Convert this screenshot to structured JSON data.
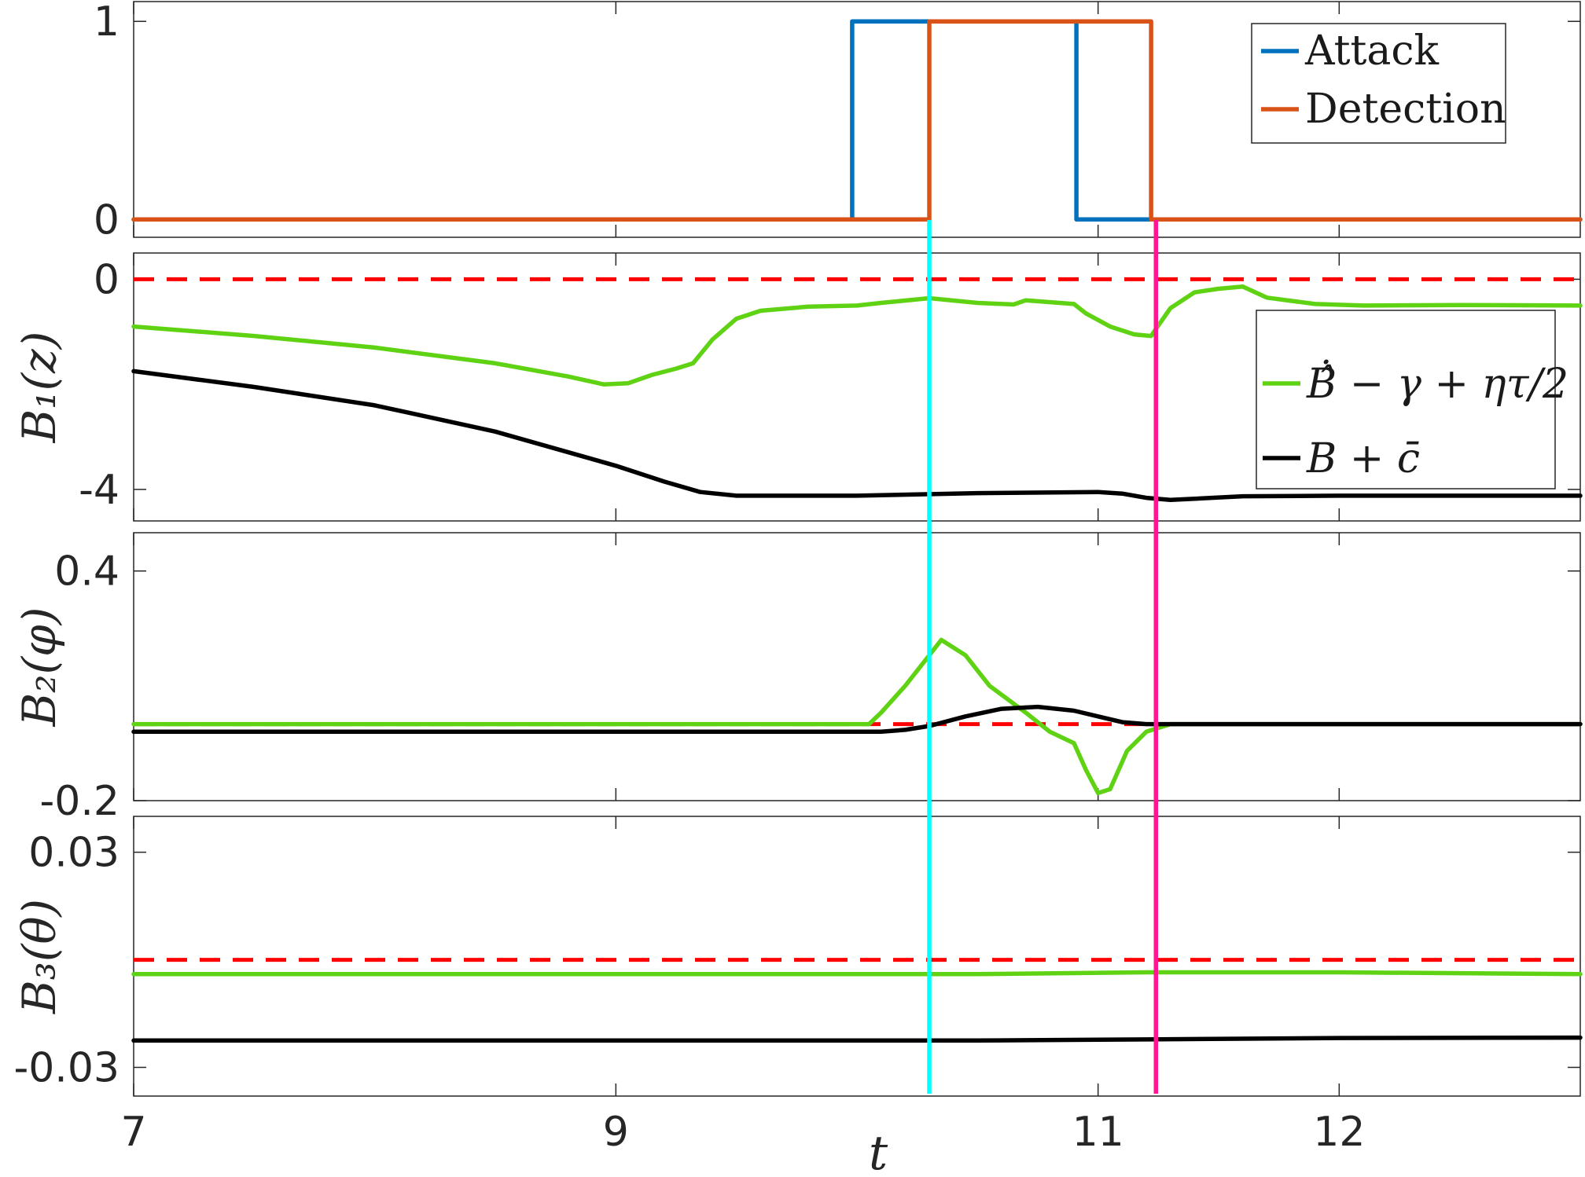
{
  "chart_data": {
    "type": "line",
    "xlabel": "t",
    "xlim": [
      7,
      13
    ],
    "xticks": [
      "7",
      "9",
      "11",
      "12"
    ],
    "xtick_values": [
      7,
      9,
      11,
      12
    ],
    "vlines": [
      {
        "x": 10.3,
        "color": "#00FFFF"
      },
      {
        "x": 11.24,
        "color": "#FF1493"
      }
    ],
    "colors": {
      "attack": "#0072BD",
      "detection": "#D95319",
      "green": "#5FD313",
      "black": "#000000",
      "zero": "#FF0000"
    },
    "panels": [
      {
        "id": "flags",
        "ylabel": "",
        "ylim": [
          -0.09,
          1.1
        ],
        "yticks": [
          {
            "v": 0,
            "label": "0"
          },
          {
            "v": 1,
            "label": "1"
          }
        ],
        "zero_line": false,
        "legend": {
          "position": "top-right",
          "entries": [
            "Attack",
            "Detection"
          ]
        },
        "series": [
          {
            "name": "Attack",
            "color_key": "attack",
            "step": true,
            "x": [
              7,
              9.98,
              9.98,
              10.91,
              10.91,
              13
            ],
            "y": [
              0,
              0,
              1,
              1,
              0,
              0
            ]
          },
          {
            "name": "Detection",
            "color_key": "detection",
            "step": true,
            "x": [
              7,
              10.3,
              10.3,
              11.22,
              11.22,
              13
            ],
            "y": [
              0,
              0,
              1,
              1,
              0,
              0
            ]
          }
        ]
      },
      {
        "id": "B1",
        "ylabel": "B₁(z)",
        "ylim": [
          -4.6,
          0.5
        ],
        "yticks": [
          {
            "v": 0,
            "label": "0"
          },
          {
            "v": -4,
            "label": "-4"
          }
        ],
        "zero_line": true,
        "legend": {
          "position": "right",
          "entries": [
            "Ḃ̂ − γ + ητ/2",
            "B + c̄"
          ]
        },
        "series": [
          {
            "name": "green",
            "color_key": "green",
            "x": [
              7,
              7.5,
              8,
              8.5,
              8.8,
              8.95,
              9.05,
              9.15,
              9.25,
              9.32,
              9.4,
              9.5,
              9.6,
              9.8,
              10.0,
              10.1,
              10.3,
              10.5,
              10.65,
              10.7,
              10.9,
              10.95,
              11.05,
              11.15,
              11.22,
              11.3,
              11.4,
              11.5,
              11.6,
              11.7,
              11.9,
              12.1,
              12.5,
              13
            ],
            "y": [
              -0.9,
              -1.08,
              -1.3,
              -1.6,
              -1.85,
              -2.0,
              -1.98,
              -1.82,
              -1.7,
              -1.6,
              -1.15,
              -0.75,
              -0.6,
              -0.52,
              -0.5,
              -0.45,
              -0.36,
              -0.45,
              -0.48,
              -0.4,
              -0.47,
              -0.65,
              -0.9,
              -1.05,
              -1.08,
              -0.55,
              -0.25,
              -0.18,
              -0.14,
              -0.35,
              -0.47,
              -0.5,
              -0.49,
              -0.5
            ]
          },
          {
            "name": "black",
            "color_key": "black",
            "x": [
              7,
              7.5,
              8,
              8.5,
              9.0,
              9.2,
              9.35,
              9.5,
              10.0,
              10.5,
              11.0,
              11.1,
              11.2,
              11.3,
              11.6,
              12.0,
              13
            ],
            "y": [
              -1.75,
              -2.05,
              -2.4,
              -2.9,
              -3.55,
              -3.85,
              -4.05,
              -4.12,
              -4.12,
              -4.07,
              -4.05,
              -4.08,
              -4.16,
              -4.2,
              -4.13,
              -4.12,
              -4.12
            ]
          }
        ]
      },
      {
        "id": "B2",
        "ylabel": "B₂(φ)",
        "ylim": [
          -0.2,
          0.5
        ],
        "yticks": [
          {
            "v": 0.4,
            "label": "0.4"
          },
          {
            "v": -0.2,
            "label": "-0.2"
          }
        ],
        "zero_line": true,
        "series": [
          {
            "name": "green",
            "color_key": "green",
            "x": [
              7,
              9.5,
              10.05,
              10.1,
              10.2,
              10.3,
              10.35,
              10.45,
              10.55,
              10.7,
              10.8,
              10.9,
              10.95,
              11.0,
              11.05,
              11.12,
              11.2,
              11.3,
              11.6,
              13
            ],
            "y": [
              0,
              0,
              0,
              0.03,
              0.1,
              0.18,
              0.22,
              0.18,
              0.1,
              0.03,
              -0.02,
              -0.05,
              -0.12,
              -0.18,
              -0.17,
              -0.07,
              -0.02,
              0,
              0,
              0
            ]
          },
          {
            "name": "black",
            "color_key": "black",
            "x": [
              7,
              9.5,
              10.1,
              10.2,
              10.3,
              10.45,
              10.6,
              10.75,
              10.9,
              11.0,
              11.1,
              11.2,
              11.5,
              13
            ],
            "y": [
              -0.02,
              -0.02,
              -0.02,
              -0.015,
              -0.005,
              0.02,
              0.04,
              0.045,
              0.035,
              0.02,
              0.005,
              0,
              0,
              0
            ]
          }
        ]
      },
      {
        "id": "B3",
        "ylabel": "B₃(θ)",
        "ylim": [
          -0.038,
          0.04
        ],
        "yticks": [
          {
            "v": 0.03,
            "label": "0.03"
          },
          {
            "v": -0.03,
            "label": "-0.03"
          }
        ],
        "zero_line": true,
        "series": [
          {
            "name": "green",
            "color_key": "green",
            "x": [
              7,
              10.5,
              11.2,
              12,
              13
            ],
            "y": [
              -0.004,
              -0.004,
              -0.0035,
              -0.0035,
              -0.004
            ]
          },
          {
            "name": "black",
            "color_key": "black",
            "x": [
              7,
              10.5,
              11.2,
              12,
              13
            ],
            "y": [
              -0.0225,
              -0.0225,
              -0.0222,
              -0.0218,
              -0.0217
            ]
          }
        ]
      }
    ]
  }
}
